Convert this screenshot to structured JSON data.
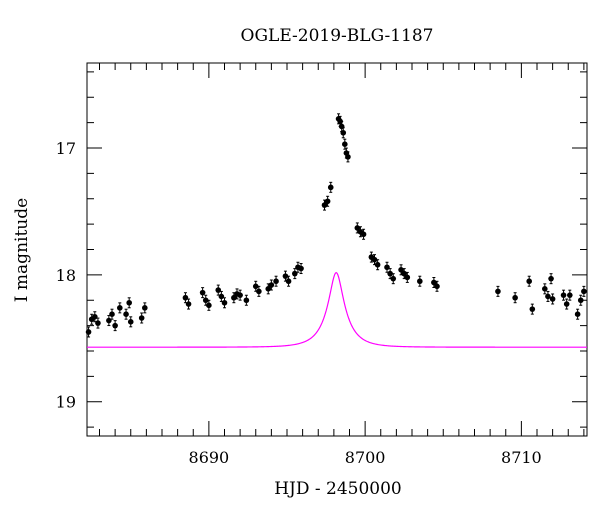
{
  "chart_data": {
    "type": "scatter",
    "title": "OGLE-2019-BLG-1187",
    "xlabel": "HJD - 2450000",
    "ylabel": "I magnitude",
    "xlim": [
      8682.2,
      8714.2
    ],
    "ylim": [
      19.27,
      16.33
    ],
    "y_inverted": true,
    "x_major_ticks": [
      8690,
      8700,
      8710
    ],
    "x_tick_labels": [
      "8690",
      "8700",
      "8710"
    ],
    "y_major_ticks": [
      17,
      18,
      19
    ],
    "y_tick_labels": [
      "17",
      "18",
      "19"
    ],
    "grid": false,
    "model_color": "#ff00ff",
    "data_color": "#000000",
    "series": [
      {
        "kind": "points",
        "points": [
          [
            8682.3,
            18.45
          ],
          [
            8682.5,
            18.35
          ],
          [
            8682.7,
            18.33
          ],
          [
            8682.9,
            18.38
          ],
          [
            8683.6,
            18.36
          ],
          [
            8683.8,
            18.31
          ],
          [
            8684.0,
            18.4
          ],
          [
            8684.3,
            18.26
          ],
          [
            8684.7,
            18.31
          ],
          [
            8684.9,
            18.22
          ],
          [
            8685.0,
            18.37
          ],
          [
            8685.7,
            18.34
          ],
          [
            8685.9,
            18.26
          ],
          [
            8688.5,
            18.18
          ],
          [
            8688.7,
            18.23
          ],
          [
            8689.6,
            18.14
          ],
          [
            8689.8,
            18.2
          ],
          [
            8690.0,
            18.24
          ],
          [
            8690.6,
            18.12
          ],
          [
            8690.8,
            18.17
          ],
          [
            8691.0,
            18.22
          ],
          [
            8691.6,
            18.18
          ],
          [
            8691.8,
            18.15
          ],
          [
            8692.0,
            18.16
          ],
          [
            8692.4,
            18.2
          ],
          [
            8693.0,
            18.09
          ],
          [
            8693.2,
            18.13
          ],
          [
            8693.8,
            18.11
          ],
          [
            8694.0,
            18.08
          ],
          [
            8694.3,
            18.05
          ],
          [
            8694.9,
            18.01
          ],
          [
            8695.1,
            18.05
          ],
          [
            8695.5,
            17.99
          ],
          [
            8695.7,
            17.94
          ],
          [
            8695.9,
            17.95
          ],
          [
            8697.4,
            17.45
          ],
          [
            8697.6,
            17.42
          ],
          [
            8697.8,
            17.31
          ],
          [
            8698.3,
            16.77
          ],
          [
            8698.4,
            16.79
          ],
          [
            8698.5,
            16.83
          ],
          [
            8698.6,
            16.88
          ],
          [
            8698.7,
            16.97
          ],
          [
            8698.8,
            17.04
          ],
          [
            8698.9,
            17.07
          ],
          [
            8699.5,
            17.63
          ],
          [
            8699.7,
            17.66
          ],
          [
            8699.9,
            17.68
          ],
          [
            8700.4,
            17.86
          ],
          [
            8700.6,
            17.88
          ],
          [
            8700.8,
            17.92
          ],
          [
            8701.4,
            17.94
          ],
          [
            8701.6,
            17.99
          ],
          [
            8701.8,
            18.03
          ],
          [
            8702.3,
            17.96
          ],
          [
            8702.5,
            17.99
          ],
          [
            8702.7,
            18.02
          ],
          [
            8703.5,
            18.05
          ],
          [
            8704.4,
            18.06
          ],
          [
            8704.6,
            18.09
          ],
          [
            8708.5,
            18.13
          ],
          [
            8709.6,
            18.18
          ],
          [
            8710.5,
            18.05
          ],
          [
            8710.7,
            18.27
          ],
          [
            8711.5,
            18.11
          ],
          [
            8711.7,
            18.17
          ],
          [
            8711.9,
            18.03
          ],
          [
            8712.0,
            18.19
          ],
          [
            8712.7,
            18.16
          ],
          [
            8712.9,
            18.23
          ],
          [
            8713.1,
            18.16
          ],
          [
            8713.6,
            18.31
          ],
          [
            8713.8,
            18.2
          ],
          [
            8714.0,
            18.13
          ]
        ]
      },
      {
        "kind": "model-curve",
        "params": {
          "t0": 8698.15,
          "tE": 1.35,
          "u0": 0.32,
          "blend_fraction": 0.32,
          "base_mag": 18.57
        }
      }
    ]
  }
}
